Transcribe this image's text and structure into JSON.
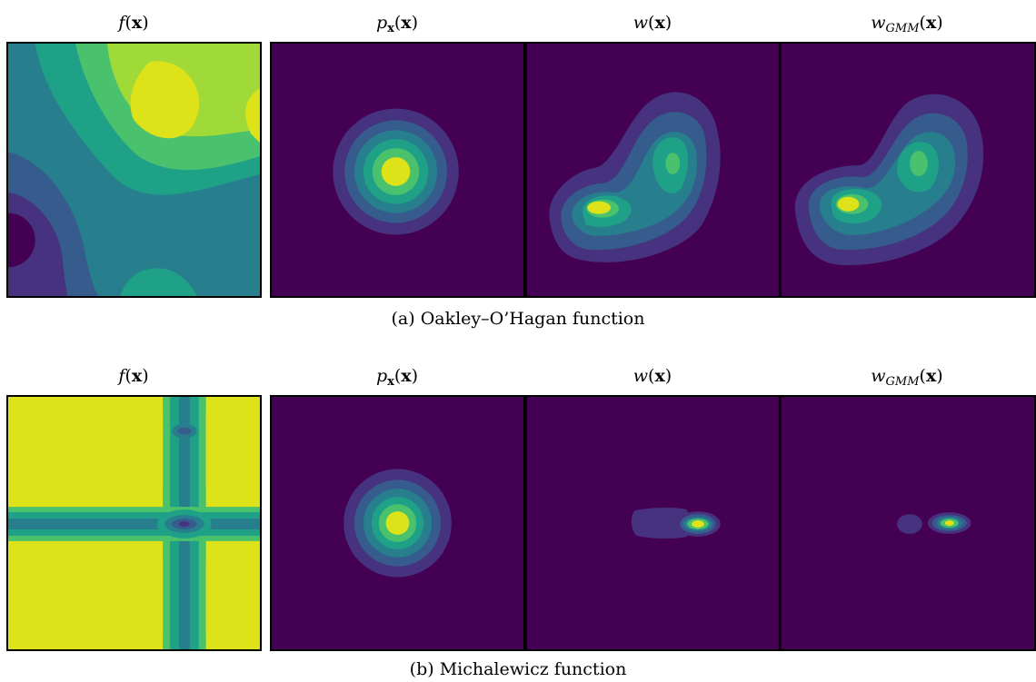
{
  "figure": {
    "rows": [
      {
        "caption": "(a) Oakley–O’Hagan function",
        "panels": [
          {
            "title_func": "f",
            "title_sub": "",
            "title_arg": "x"
          },
          {
            "title_func": "p",
            "title_sub": "x",
            "title_arg": "x"
          },
          {
            "title_func": "w",
            "title_sub": "",
            "title_arg": "x"
          },
          {
            "title_func": "w",
            "title_sub": "GMM",
            "title_arg": "x"
          }
        ]
      },
      {
        "caption": "(b) Michalewicz function",
        "panels": [
          {
            "title_func": "f",
            "title_sub": "",
            "title_arg": "x"
          },
          {
            "title_func": "p",
            "title_sub": "x",
            "title_arg": "x"
          },
          {
            "title_func": "w",
            "title_sub": "",
            "title_arg": "x"
          },
          {
            "title_func": "w",
            "title_sub": "GMM",
            "title_arg": "x"
          }
        ]
      }
    ],
    "colormap": [
      "#440154",
      "#46327e",
      "#365c8d",
      "#277f8e",
      "#1fa187",
      "#4ac16d",
      "#a0da39",
      "#dde318"
    ]
  }
}
